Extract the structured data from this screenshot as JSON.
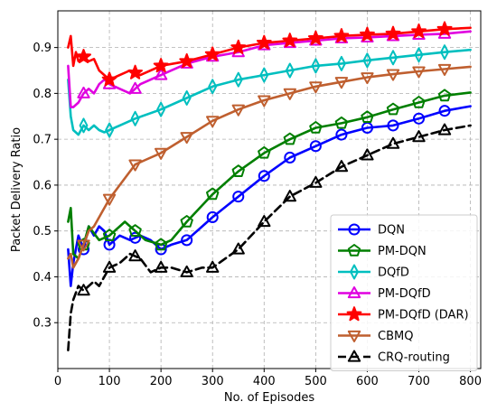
{
  "chart_data": {
    "type": "line",
    "xlabel": "No. of Episodes",
    "ylabel": "Packet Delivery Ratio",
    "xlim": [
      0,
      820
    ],
    "ylim": [
      0.2,
      0.98
    ],
    "xticks": [
      0,
      100,
      200,
      300,
      400,
      500,
      600,
      700,
      800
    ],
    "yticks": [
      0.3,
      0.4,
      0.5,
      0.6,
      0.7,
      0.8,
      0.9
    ],
    "grid": true,
    "legend_position": "lower-right",
    "series": [
      {
        "name": "DQN",
        "color": "#0000ff",
        "dash": "solid",
        "marker": "circle",
        "x": [
          20,
          25,
          30,
          40,
          50,
          60,
          70,
          80,
          90,
          100,
          120,
          140,
          160,
          180,
          200,
          220,
          250,
          300,
          350,
          400,
          450,
          500,
          550,
          600,
          650,
          700,
          750,
          800
        ],
        "y": [
          0.46,
          0.38,
          0.43,
          0.49,
          0.46,
          0.51,
          0.49,
          0.51,
          0.5,
          0.47,
          0.49,
          0.48,
          0.49,
          0.48,
          0.46,
          0.47,
          0.48,
          0.53,
          0.575,
          0.62,
          0.66,
          0.685,
          0.71,
          0.725,
          0.73,
          0.745,
          0.762,
          0.772
        ],
        "markers_x": [
          50,
          100,
          150,
          200,
          250,
          300,
          350,
          400,
          450,
          500,
          550,
          600,
          650,
          700,
          750
        ]
      },
      {
        "name": "PM-DQN",
        "color": "#007f00",
        "dash": "solid",
        "marker": "pentagon",
        "x": [
          20,
          25,
          30,
          40,
          50,
          60,
          80,
          100,
          120,
          130,
          150,
          170,
          200,
          220,
          250,
          300,
          350,
          400,
          450,
          500,
          550,
          600,
          650,
          700,
          750,
          800
        ],
        "y": [
          0.52,
          0.55,
          0.45,
          0.44,
          0.47,
          0.51,
          0.48,
          0.49,
          0.51,
          0.52,
          0.5,
          0.48,
          0.47,
          0.48,
          0.52,
          0.58,
          0.63,
          0.67,
          0.7,
          0.725,
          0.735,
          0.748,
          0.765,
          0.78,
          0.795,
          0.802
        ],
        "markers_x": [
          50,
          100,
          150,
          200,
          250,
          300,
          350,
          400,
          450,
          500,
          550,
          600,
          650,
          700,
          750
        ]
      },
      {
        "name": "DQfD",
        "color": "#00bfbf",
        "dash": "solid",
        "marker": "thin_diamond",
        "x": [
          20,
          25,
          30,
          40,
          50,
          60,
          70,
          80,
          90,
          100,
          120,
          150,
          200,
          250,
          300,
          350,
          400,
          450,
          500,
          550,
          600,
          650,
          700,
          750,
          800
        ],
        "y": [
          0.83,
          0.75,
          0.72,
          0.71,
          0.73,
          0.72,
          0.73,
          0.72,
          0.715,
          0.72,
          0.73,
          0.745,
          0.765,
          0.79,
          0.815,
          0.83,
          0.84,
          0.85,
          0.86,
          0.865,
          0.872,
          0.878,
          0.884,
          0.89,
          0.895
        ],
        "markers_x": [
          50,
          100,
          150,
          200,
          250,
          300,
          350,
          400,
          450,
          500,
          550,
          600,
          650,
          700,
          750
        ]
      },
      {
        "name": "PM-DQfD",
        "color": "#e000e0",
        "dash": "solid",
        "marker": "triangle_up",
        "x": [
          20,
          25,
          30,
          40,
          50,
          60,
          70,
          80,
          90,
          100,
          120,
          140,
          160,
          200,
          250,
          300,
          350,
          400,
          450,
          500,
          550,
          600,
          650,
          700,
          750,
          800
        ],
        "y": [
          0.86,
          0.77,
          0.77,
          0.78,
          0.8,
          0.81,
          0.8,
          0.82,
          0.83,
          0.82,
          0.81,
          0.8,
          0.82,
          0.84,
          0.865,
          0.88,
          0.89,
          0.905,
          0.91,
          0.915,
          0.92,
          0.922,
          0.925,
          0.928,
          0.93,
          0.935
        ],
        "markers_x": [
          50,
          100,
          150,
          200,
          250,
          300,
          350,
          400,
          450,
          500,
          550,
          600,
          650,
          700,
          750
        ]
      },
      {
        "name": "PM-DQfD (DAR)",
        "color": "#ff0000",
        "dash": "solid",
        "marker": "star",
        "x": [
          20,
          25,
          30,
          35,
          40,
          50,
          60,
          70,
          80,
          90,
          100,
          120,
          140,
          160,
          200,
          250,
          300,
          350,
          400,
          450,
          500,
          550,
          600,
          650,
          700,
          750,
          800
        ],
        "y": [
          0.9,
          0.925,
          0.86,
          0.89,
          0.87,
          0.88,
          0.87,
          0.875,
          0.85,
          0.84,
          0.83,
          0.84,
          0.85,
          0.84,
          0.86,
          0.87,
          0.885,
          0.9,
          0.91,
          0.915,
          0.92,
          0.925,
          0.928,
          0.93,
          0.935,
          0.94,
          0.943
        ],
        "markers_x": [
          50,
          100,
          150,
          200,
          250,
          300,
          350,
          400,
          450,
          500,
          550,
          600,
          650,
          700,
          750
        ]
      },
      {
        "name": "CBMQ",
        "color": "#bf5f2f",
        "dash": "solid",
        "marker": "triangle_down",
        "x": [
          20,
          25,
          30,
          40,
          50,
          60,
          70,
          80,
          100,
          120,
          150,
          170,
          200,
          250,
          300,
          350,
          400,
          450,
          500,
          550,
          600,
          650,
          700,
          750,
          800
        ],
        "y": [
          0.44,
          0.45,
          0.42,
          0.44,
          0.47,
          0.5,
          0.51,
          0.53,
          0.57,
          0.6,
          0.645,
          0.655,
          0.67,
          0.705,
          0.74,
          0.765,
          0.785,
          0.8,
          0.815,
          0.825,
          0.835,
          0.842,
          0.848,
          0.853,
          0.858
        ],
        "markers_x": [
          50,
          100,
          150,
          200,
          250,
          300,
          350,
          400,
          450,
          500,
          550,
          600,
          650,
          700,
          750
        ]
      },
      {
        "name": "CRQ-routing",
        "color": "#000000",
        "dash": "dashed",
        "marker": "triangle_up",
        "x": [
          20,
          25,
          30,
          40,
          50,
          60,
          70,
          80,
          100,
          120,
          140,
          160,
          180,
          200,
          220,
          250,
          280,
          300,
          350,
          400,
          450,
          500,
          550,
          600,
          650,
          700,
          750,
          800
        ],
        "y": [
          0.24,
          0.32,
          0.35,
          0.38,
          0.37,
          0.38,
          0.39,
          0.38,
          0.42,
          0.43,
          0.45,
          0.44,
          0.41,
          0.42,
          0.42,
          0.41,
          0.42,
          0.42,
          0.46,
          0.52,
          0.575,
          0.605,
          0.64,
          0.665,
          0.69,
          0.705,
          0.72,
          0.73
        ],
        "markers_x": [
          50,
          100,
          150,
          200,
          250,
          300,
          350,
          400,
          450,
          500,
          550,
          600,
          650,
          700,
          750
        ]
      }
    ]
  }
}
